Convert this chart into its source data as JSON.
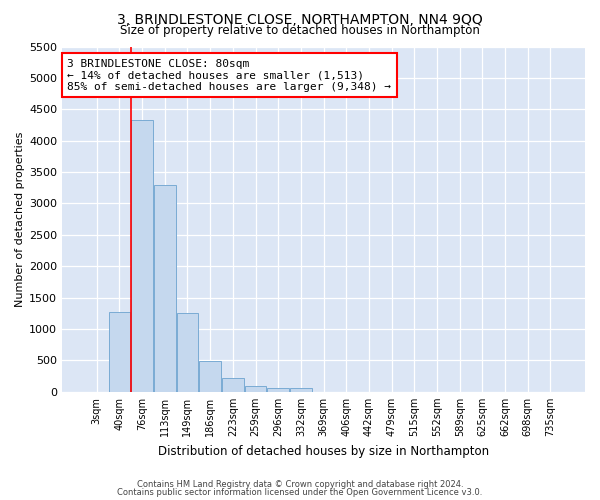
{
  "title": "3, BRINDLESTONE CLOSE, NORTHAMPTON, NN4 9QQ",
  "subtitle": "Size of property relative to detached houses in Northampton",
  "xlabel": "Distribution of detached houses by size in Northampton",
  "ylabel": "Number of detached properties",
  "bar_color": "#c5d8ee",
  "bar_edge_color": "#7aabd4",
  "background_color": "#dce6f5",
  "grid_color": "#ffffff",
  "categories": [
    "3sqm",
    "40sqm",
    "76sqm",
    "113sqm",
    "149sqm",
    "186sqm",
    "223sqm",
    "259sqm",
    "296sqm",
    "332sqm",
    "369sqm",
    "406sqm",
    "442sqm",
    "479sqm",
    "515sqm",
    "552sqm",
    "589sqm",
    "625sqm",
    "662sqm",
    "698sqm",
    "735sqm"
  ],
  "values": [
    0,
    1270,
    4330,
    3300,
    1260,
    490,
    215,
    90,
    65,
    55,
    0,
    0,
    0,
    0,
    0,
    0,
    0,
    0,
    0,
    0,
    0
  ],
  "ylim": [
    0,
    5500
  ],
  "yticks": [
    0,
    500,
    1000,
    1500,
    2000,
    2500,
    3000,
    3500,
    4000,
    4500,
    5000,
    5500
  ],
  "annotation_line1": "3 BRINDLESTONE CLOSE: 80sqm",
  "annotation_line2": "← 14% of detached houses are smaller (1,513)",
  "annotation_line3": "85% of semi-detached houses are larger (9,348) →",
  "vline_x": 1.525,
  "footer_line1": "Contains HM Land Registry data © Crown copyright and database right 2024.",
  "footer_line2": "Contains public sector information licensed under the Open Government Licence v3.0."
}
